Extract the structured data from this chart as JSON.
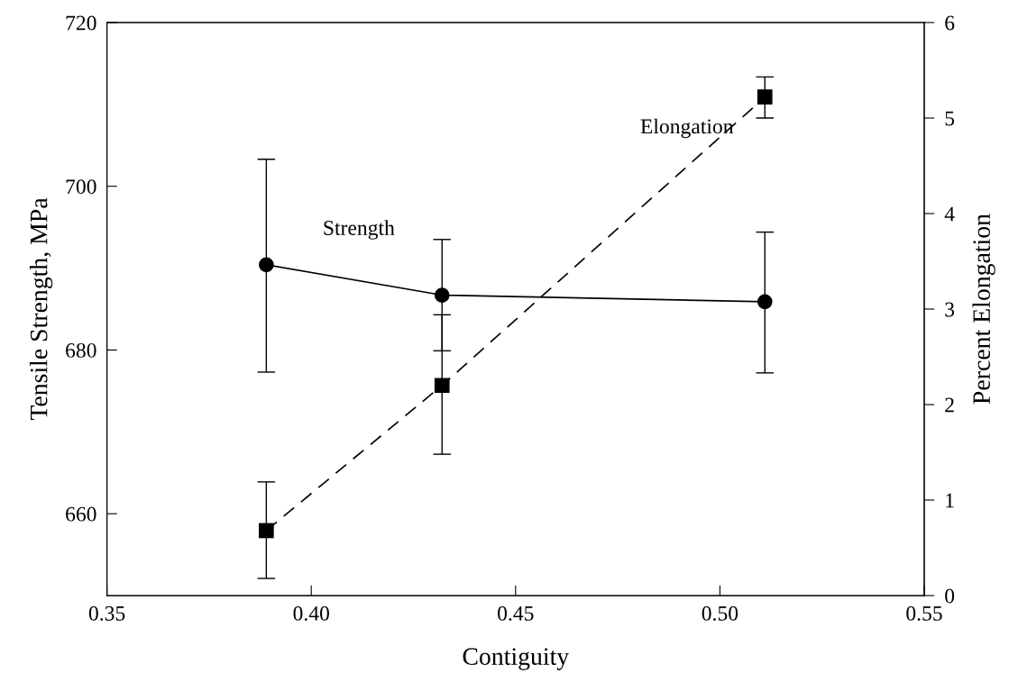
{
  "chart_data": {
    "type": "line",
    "xlabel": "Contiguity",
    "ylabel": "Tensile Strength, MPa",
    "y2label": "Percent Elongation",
    "xlim": [
      0.35,
      0.55
    ],
    "xticks": [
      {
        "value": 0.35,
        "label": "0.35"
      },
      {
        "value": 0.4,
        "label": "0.40"
      },
      {
        "value": 0.45,
        "label": "0.45"
      },
      {
        "value": 0.5,
        "label": "0.50"
      },
      {
        "value": 0.55,
        "label": "0.55"
      }
    ],
    "ylim": [
      650,
      720
    ],
    "yticks": [
      660,
      680,
      700,
      720
    ],
    "y2lim": [
      0,
      6
    ],
    "y2ticks": [
      0,
      1,
      2,
      3,
      4,
      5,
      6
    ],
    "x": [
      0.389,
      0.432,
      0.511
    ],
    "grid": false,
    "legend": false,
    "series": [
      {
        "name": "Strength",
        "color": "#000000",
        "marker": "circle",
        "line_style": "solid",
        "values": [
          690.4,
          686.7,
          685.9
        ],
        "errors": [
          [
            677.3,
            703.3
          ],
          [
            679.9,
            693.5
          ],
          [
            677.2,
            694.4
          ]
        ]
      },
      {
        "name": "Elongation",
        "axis": "y2",
        "color": "#000000",
        "marker": "square",
        "line_style": "dashed",
        "values": [
          0.68,
          2.2,
          5.22
        ],
        "errors": [
          [
            0.18,
            1.19
          ],
          [
            1.48,
            2.94
          ],
          [
            5.0,
            5.43
          ]
        ]
      }
    ]
  }
}
